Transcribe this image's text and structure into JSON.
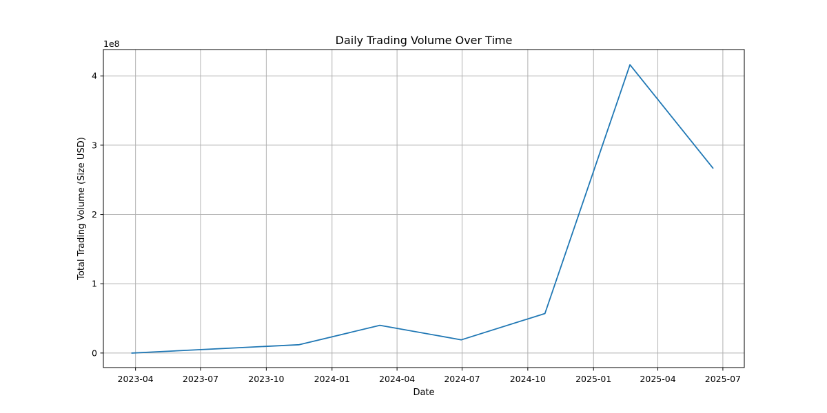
{
  "chart_data": {
    "type": "line",
    "title": "Daily Trading Volume Over Time",
    "xlabel": "Date",
    "ylabel": "Total Trading Volume (Size USD)",
    "y_offset_label": "1e8",
    "y_multiplier": 100000000,
    "grid": true,
    "x_tick_labels": [
      "2023-04",
      "2023-07",
      "2023-10",
      "2024-01",
      "2024-04",
      "2024-07",
      "2024-10",
      "2025-01",
      "2025-04",
      "2025-07"
    ],
    "x_range": [
      "2023-02-15",
      "2025-07-31"
    ],
    "y_ticks": [
      0,
      1,
      2,
      3,
      4
    ],
    "ylim": [
      -0.21,
      4.38
    ],
    "line_color": "#1f77b4",
    "series": [
      {
        "x": [
          "2023-03-27",
          "2023-11-16",
          "2024-03-08",
          "2024-06-30",
          "2024-10-25",
          "2025-02-21",
          "2025-06-17"
        ],
        "values": [
          0.0,
          0.12,
          0.4,
          0.19,
          0.57,
          4.16,
          2.67
        ]
      }
    ]
  }
}
